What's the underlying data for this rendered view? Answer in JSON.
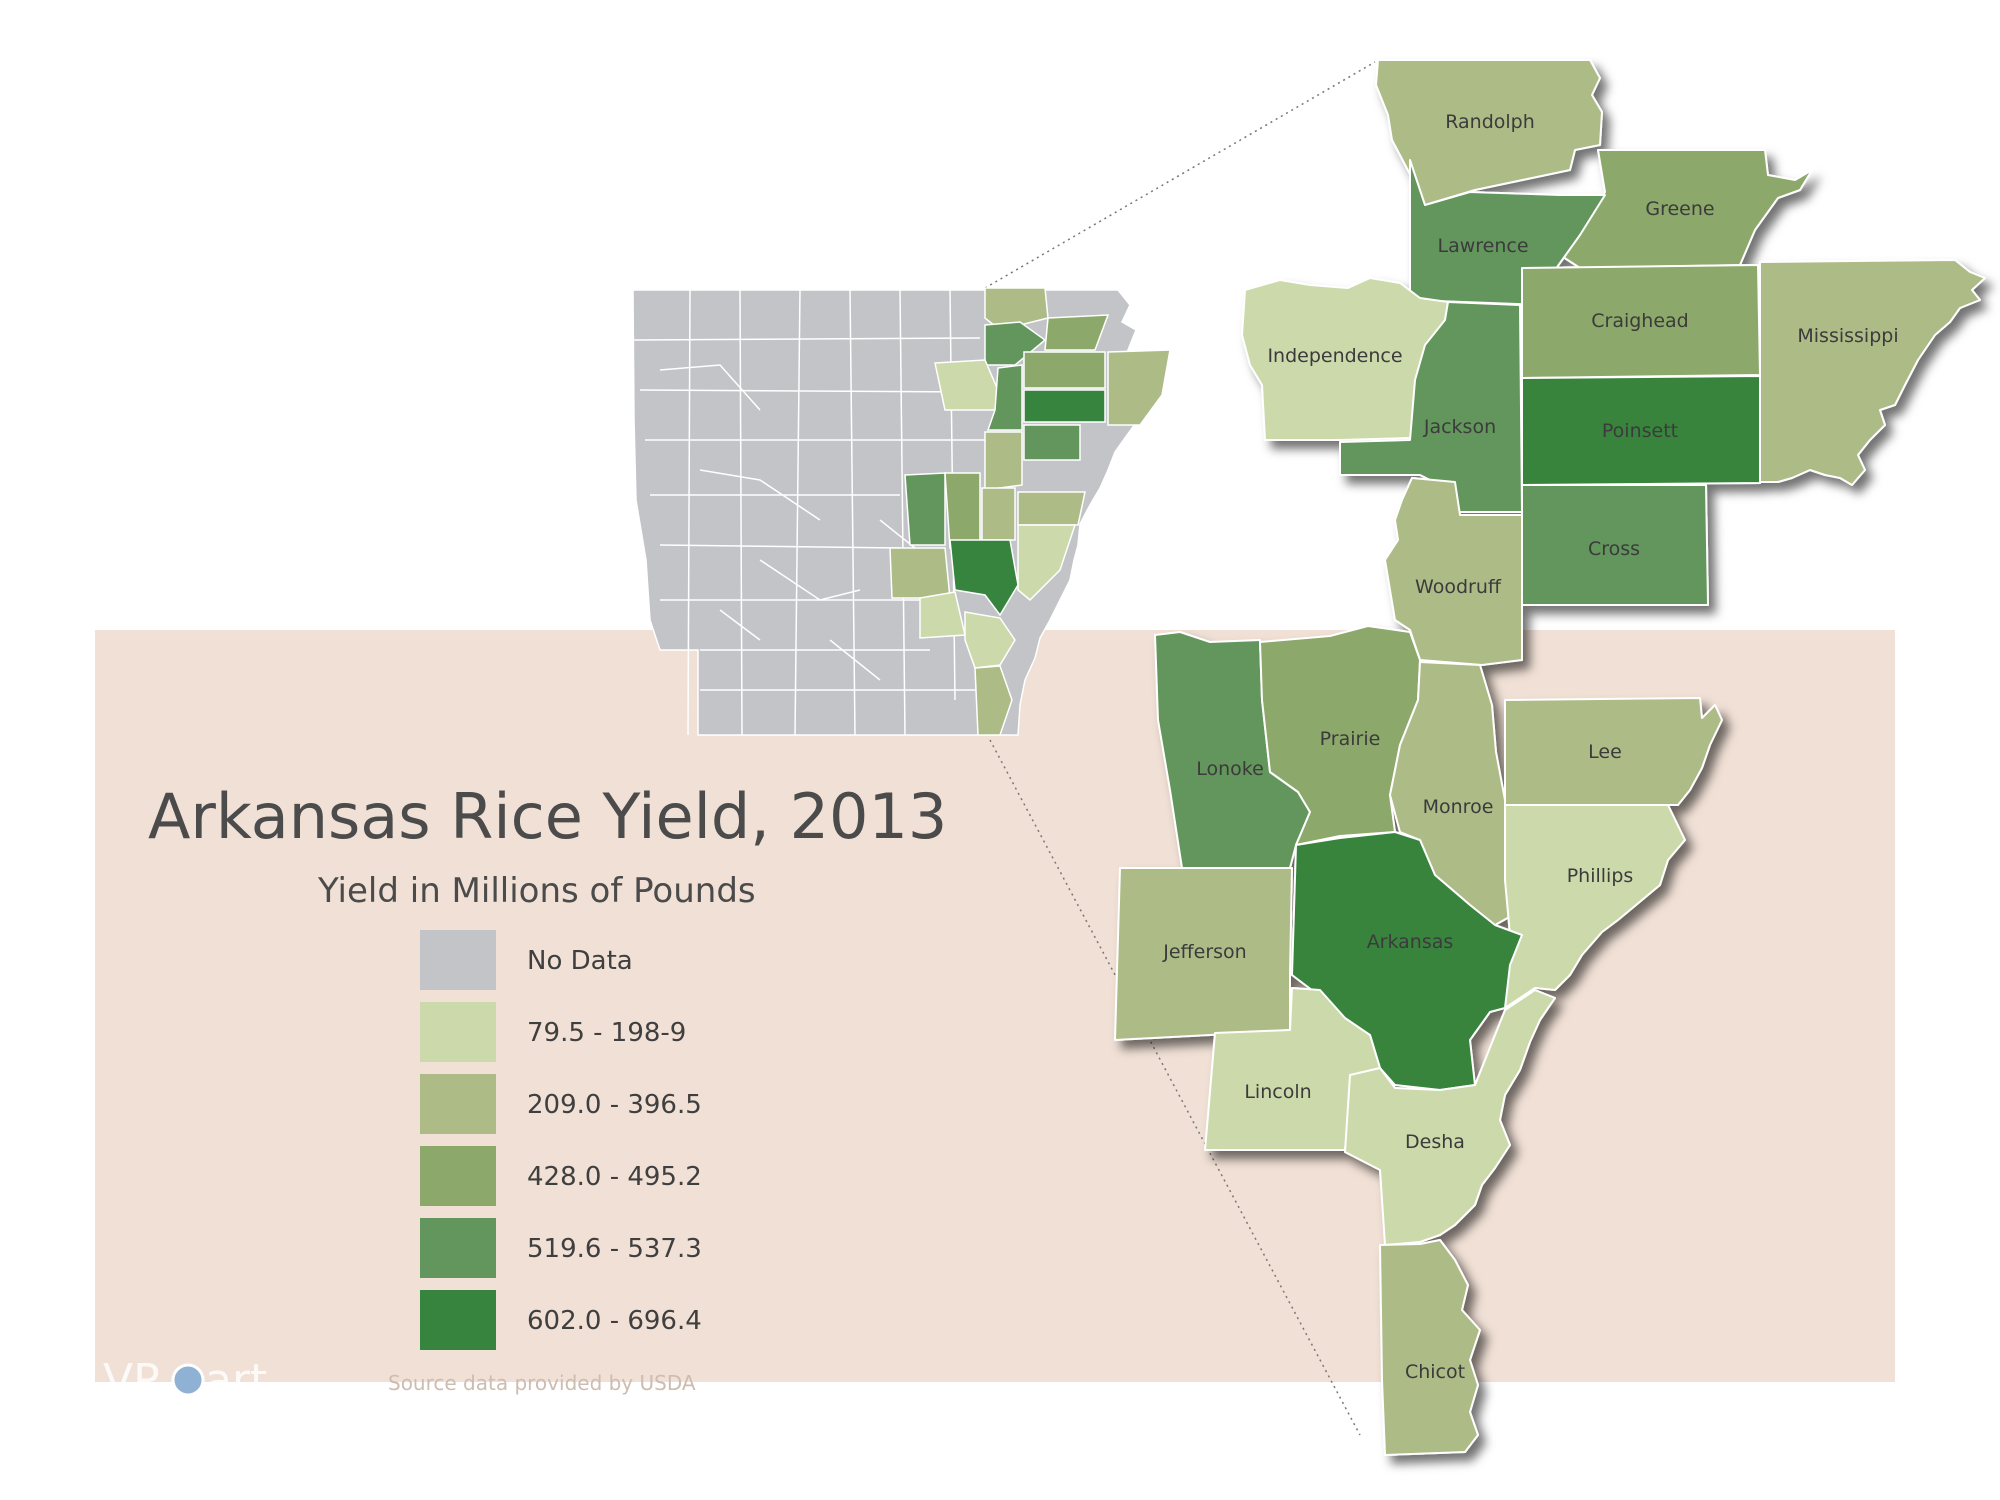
{
  "title": "Arkansas Rice Yield, 2013",
  "subtitle": "Yield in Millions of Pounds",
  "source": "Source data provided by USDA",
  "logo": {
    "left": "VP",
    "right": "art"
  },
  "colors": {
    "no_data": "#c3c4c8",
    "class1": "#ccd9aa",
    "class2": "#adbb86",
    "class3": "#8ca86a",
    "class4": "#63965c",
    "class5": "#37843e",
    "panel": "#f0e0d5"
  },
  "legend": [
    {
      "label": "No Data",
      "color_key": "no_data"
    },
    {
      "label": "79.5 - 198-9",
      "color_key": "class1"
    },
    {
      "label": "209.0 - 396.5",
      "color_key": "class2"
    },
    {
      "label": "428.0 - 495.2",
      "color_key": "class3"
    },
    {
      "label": "519.6 - 537.3",
      "color_key": "class4"
    },
    {
      "label": "602.0 - 696.4",
      "color_key": "class5"
    }
  ],
  "counties": [
    {
      "name": "Randolph",
      "class": "class2"
    },
    {
      "name": "Greene",
      "class": "class3"
    },
    {
      "name": "Lawrence",
      "class": "class4"
    },
    {
      "name": "Craighead",
      "class": "class3"
    },
    {
      "name": "Mississippi",
      "class": "class2"
    },
    {
      "name": "Independence",
      "class": "class1"
    },
    {
      "name": "Jackson",
      "class": "class4"
    },
    {
      "name": "Poinsett",
      "class": "class5"
    },
    {
      "name": "Cross",
      "class": "class4"
    },
    {
      "name": "Woodruff",
      "class": "class2"
    },
    {
      "name": "Lonoke",
      "class": "class4"
    },
    {
      "name": "Prairie",
      "class": "class3"
    },
    {
      "name": "Monroe",
      "class": "class2"
    },
    {
      "name": "Lee",
      "class": "class2"
    },
    {
      "name": "Phillips",
      "class": "class1"
    },
    {
      "name": "Jefferson",
      "class": "class2"
    },
    {
      "name": "Arkansas",
      "class": "class5"
    },
    {
      "name": "Lincoln",
      "class": "class1"
    },
    {
      "name": "Desha",
      "class": "class1"
    },
    {
      "name": "Chicot",
      "class": "class2"
    }
  ]
}
